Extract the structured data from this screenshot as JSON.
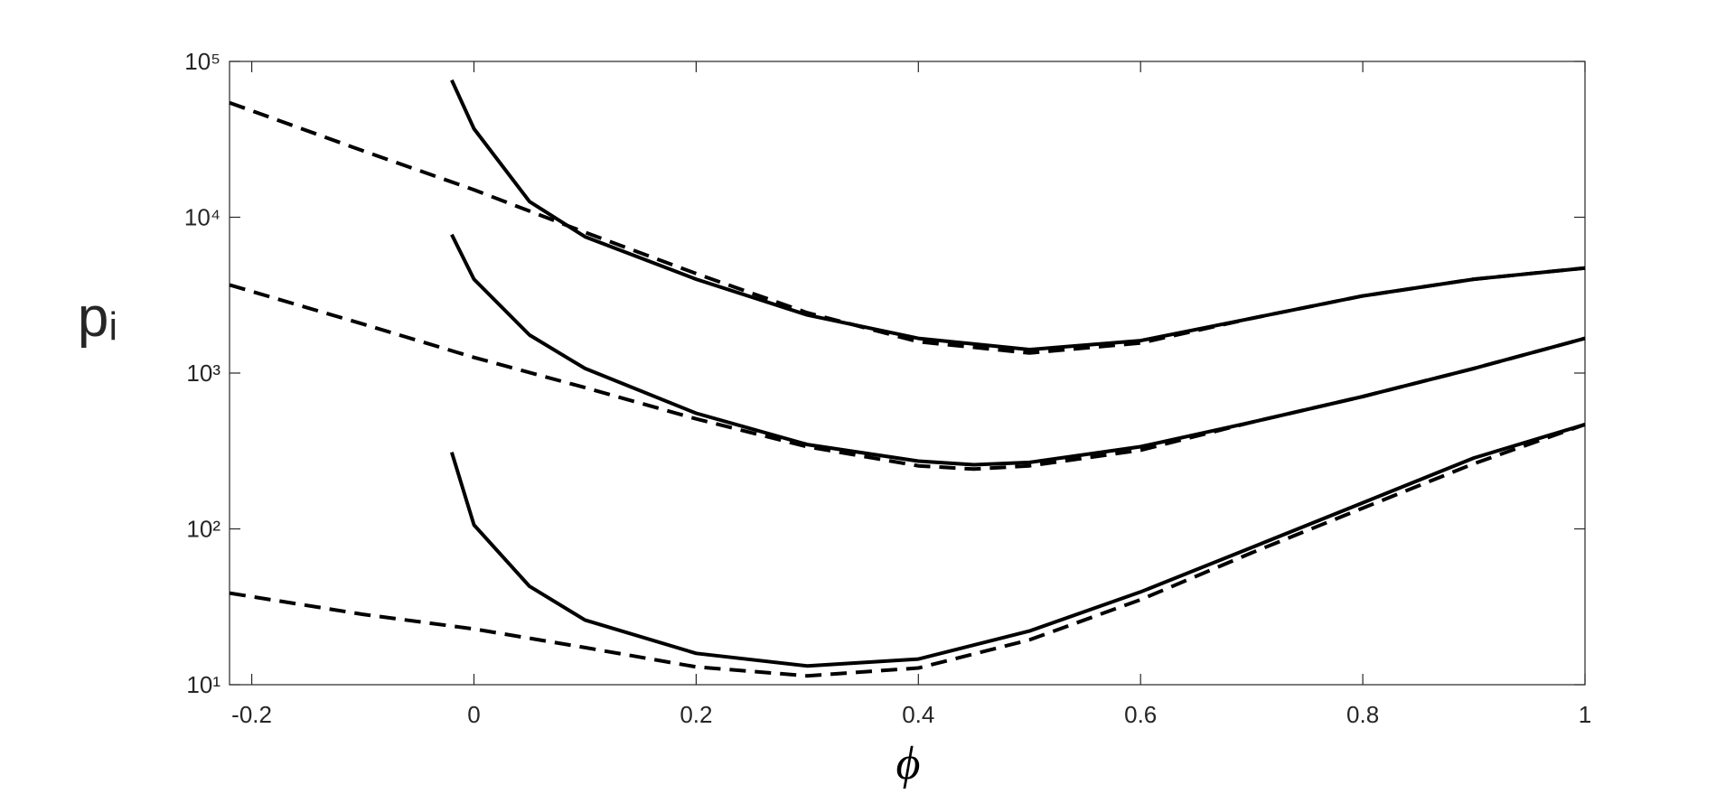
{
  "chart_data": {
    "type": "line",
    "xlabel": "ϕ",
    "ylabel": "pᵢ",
    "xlim": [
      -0.22,
      1
    ],
    "xticks": [
      -0.2,
      0,
      0.2,
      0.4,
      0.6,
      0.8,
      1
    ],
    "ylim": [
      10,
      100000
    ],
    "ylog": true,
    "yticks": [
      {
        "value": 10,
        "label": "10¹"
      },
      {
        "value": 100,
        "label": "10²"
      },
      {
        "value": 1000,
        "label": "10³"
      },
      {
        "value": 10000,
        "label": "10⁴"
      },
      {
        "value": 100000,
        "label": "10⁵"
      }
    ],
    "series": [
      {
        "color": "#000000",
        "style": "solid",
        "x": [
          -0.02,
          0,
          0.05,
          0.1,
          0.2,
          0.3,
          0.4,
          0.5,
          0.6,
          0.7,
          0.8,
          0.9,
          1.0
        ],
        "values": [
          75900,
          37000,
          12600,
          7500,
          4000,
          2360,
          1670,
          1415,
          1615,
          2245,
          3125,
          4000,
          4720
        ]
      },
      {
        "color": "#000000",
        "style": "dashed",
        "x": [
          -0.22,
          -0.1,
          0,
          0.1,
          0.2,
          0.3,
          0.4,
          0.5,
          0.6,
          0.7,
          0.8,
          0.9,
          1.0
        ],
        "values": [
          54300,
          26700,
          15000,
          8000,
          4350,
          2440,
          1590,
          1345,
          1560,
          2245,
          3125,
          4000,
          4720
        ]
      },
      {
        "color": "#000000",
        "style": "solid",
        "x": [
          -0.02,
          0,
          0.05,
          0.1,
          0.2,
          0.3,
          0.4,
          0.45,
          0.5,
          0.6,
          0.7,
          0.8,
          0.9,
          1.0
        ],
        "values": [
          7740,
          4000,
          1755,
          1070,
          552,
          348,
          272,
          258,
          267,
          337,
          484,
          707,
          1070,
          1670
        ]
      },
      {
        "color": "#000000",
        "style": "dashed",
        "x": [
          -0.22,
          -0.1,
          0,
          0.1,
          0.2,
          0.3,
          0.4,
          0.45,
          0.5,
          0.6,
          0.7,
          0.8,
          0.9,
          1.0
        ],
        "values": [
          3680,
          2065,
          1260,
          807,
          508,
          337,
          254,
          242,
          254,
          320,
          484,
          707,
          1070,
          1670
        ]
      },
      {
        "color": "#000000",
        "style": "solid",
        "x": [
          -0.02,
          0,
          0.05,
          0.1,
          0.2,
          0.3,
          0.4,
          0.5,
          0.6,
          0.7,
          0.8,
          0.9,
          1.0
        ],
        "values": [
          310,
          106,
          42.8,
          26,
          15.9,
          13.2,
          14.6,
          22.1,
          39.4,
          76,
          147,
          285,
          468
        ]
      },
      {
        "color": "#000000",
        "style": "dashed",
        "x": [
          -0.22,
          -0.1,
          0,
          0.1,
          0.2,
          0.3,
          0.4,
          0.5,
          0.6,
          0.7,
          0.8,
          0.9,
          1.0
        ],
        "values": [
          38.7,
          28.3,
          22.8,
          17.3,
          13.0,
          11.4,
          12.8,
          19.4,
          35.1,
          70.2,
          136,
          262,
          468
        ]
      }
    ]
  }
}
